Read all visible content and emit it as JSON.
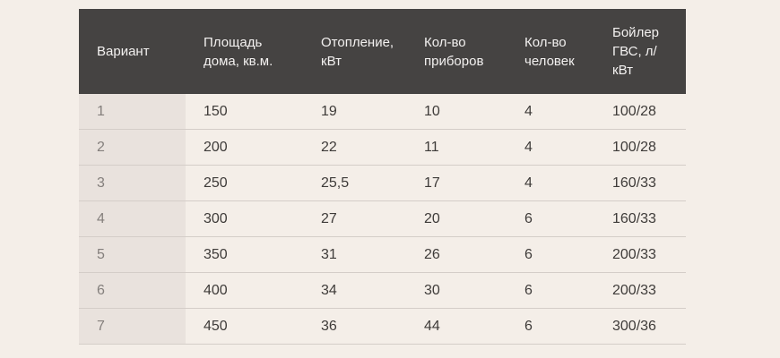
{
  "colors": {
    "page_bg": "#f4eee8",
    "header_bg": "#454342",
    "header_text": "#f3f1f0",
    "first_col_bg": "#e9e2dd",
    "first_col_text": "#847f7c",
    "body_text": "#3e3b39",
    "row_border": "#d4cdc8"
  },
  "chart_data": {
    "type": "table",
    "title": "",
    "columns": [
      "Вариант",
      "Площадь дома, кв.м.",
      "Отопление, кВт",
      "Кол-во приборов",
      "Кол-во человек",
      "Бойлер ГВС, л/кВт"
    ],
    "rows": [
      [
        "1",
        "150",
        "19",
        "10",
        "4",
        "100/28"
      ],
      [
        "2",
        "200",
        "22",
        "11",
        "4",
        "100/28"
      ],
      [
        "3",
        "250",
        "25,5",
        "17",
        "4",
        "160/33"
      ],
      [
        "4",
        "300",
        "27",
        "20",
        "6",
        "160/33"
      ],
      [
        "5",
        "350",
        "31",
        "26",
        "6",
        "200/33"
      ],
      [
        "6",
        "400",
        "34",
        "30",
        "6",
        "200/33"
      ],
      [
        "7",
        "450",
        "36",
        "44",
        "6",
        "300/36"
      ]
    ]
  }
}
